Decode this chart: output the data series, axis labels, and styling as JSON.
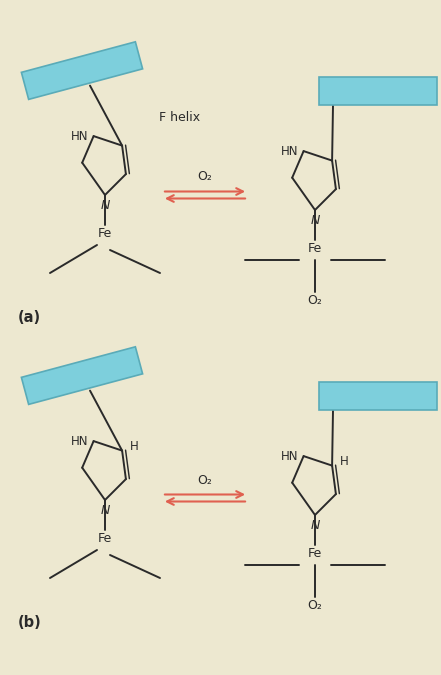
{
  "bg_color": "#ede8d0",
  "line_color": "#2a2a2a",
  "salmon_color": "#e06050",
  "box_color": "#7dcfdc",
  "box_edge_color": "#5aabb8",
  "text_color": "#2a2a2a",
  "label_a": "(a)",
  "label_b": "(b)",
  "fhelix_text": "F helix",
  "o2_text": "O₂",
  "fe_text": "Fe",
  "n_text": "N",
  "hn_text": "HN",
  "h_text": "H",
  "figsize": [
    4.41,
    6.75
  ],
  "dpi": 100
}
